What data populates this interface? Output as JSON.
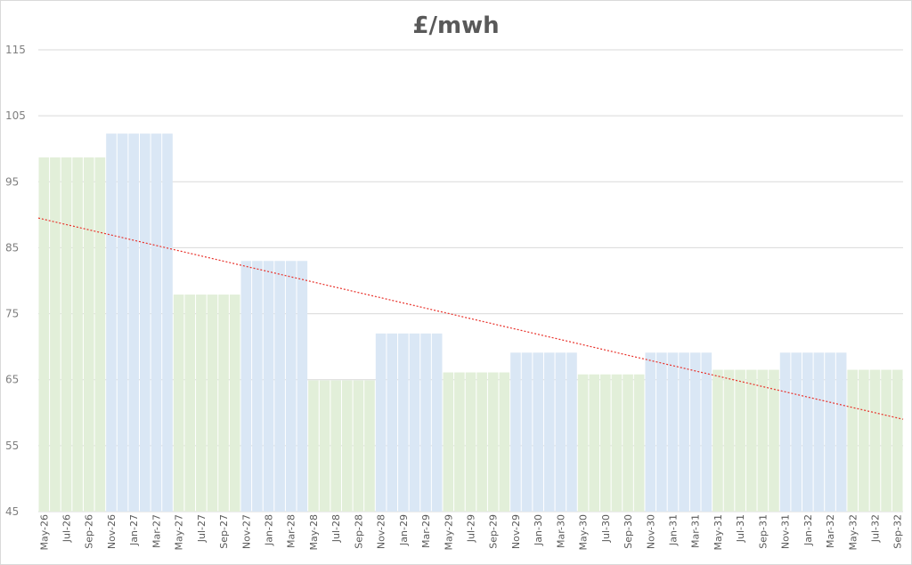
{
  "chart_data": {
    "type": "bar",
    "title": "£/mwh",
    "xlabel": "",
    "ylabel": "",
    "ylim": [
      45,
      115
    ],
    "yticks": [
      45,
      55,
      65,
      75,
      85,
      95,
      105,
      115
    ],
    "grid": "horizontal",
    "legend": "none",
    "categories": [
      "May-26",
      "Jun-26",
      "Jul-26",
      "Aug-26",
      "Sep-26",
      "Oct-26",
      "Nov-26",
      "Dec-26",
      "Jan-27",
      "Feb-27",
      "Mar-27",
      "Apr-27",
      "May-27",
      "Jun-27",
      "Jul-27",
      "Aug-27",
      "Sep-27",
      "Oct-27",
      "Nov-27",
      "Dec-27",
      "Jan-28",
      "Feb-28",
      "Mar-28",
      "Apr-28",
      "May-28",
      "Jun-28",
      "Jul-28",
      "Aug-28",
      "Sep-28",
      "Oct-28",
      "Nov-28",
      "Dec-28",
      "Jan-29",
      "Feb-29",
      "Mar-29",
      "Apr-29",
      "May-29",
      "Jun-29",
      "Jul-29",
      "Aug-29",
      "Sep-29",
      "Oct-29",
      "Nov-29",
      "Dec-29",
      "Jan-30",
      "Feb-30",
      "Mar-30",
      "Apr-30",
      "May-30",
      "Jun-30",
      "Jul-30",
      "Aug-30",
      "Sep-30",
      "Oct-30",
      "Nov-30",
      "Dec-30",
      "Jan-31",
      "Feb-31",
      "Mar-31",
      "Apr-31",
      "May-31",
      "Jun-31",
      "Jul-31",
      "Aug-31",
      "Sep-31",
      "Oct-31",
      "Nov-31",
      "Dec-31",
      "Jan-32",
      "Feb-32",
      "Mar-32",
      "Apr-32",
      "May-32",
      "Jun-32",
      "Jul-32",
      "Aug-32",
      "Sep-32"
    ],
    "tick_labels": [
      "May-26",
      "Jul-26",
      "Sep-26",
      "Nov-26",
      "Jan-27",
      "Mar-27",
      "May-27",
      "Jul-27",
      "Sep-27",
      "Nov-27",
      "Jan-28",
      "Mar-28",
      "May-28",
      "Jul-28",
      "Sep-28",
      "Nov-28",
      "Jan-29",
      "Mar-29",
      "May-29",
      "Jul-29",
      "Sep-29",
      "Nov-29",
      "Jan-30",
      "Mar-30",
      "May-30",
      "Jul-30",
      "Sep-30",
      "Nov-30",
      "Jan-31",
      "Mar-31",
      "May-31",
      "Jul-31",
      "Sep-31",
      "Nov-31",
      "Jan-32",
      "Mar-32",
      "May-32",
      "Jul-32",
      "Sep-32"
    ],
    "values": [
      98.7,
      98.7,
      98.7,
      98.7,
      98.7,
      98.7,
      102.3,
      102.3,
      102.3,
      102.3,
      102.3,
      102.3,
      77.9,
      77.9,
      77.9,
      77.9,
      77.9,
      77.9,
      83.0,
      83.0,
      83.0,
      83.0,
      83.0,
      83.0,
      64.9,
      64.9,
      64.9,
      64.9,
      64.9,
      64.9,
      72.0,
      72.0,
      72.0,
      72.0,
      72.0,
      72.0,
      66.1,
      66.1,
      66.1,
      66.1,
      66.1,
      66.1,
      69.1,
      69.1,
      69.1,
      69.1,
      69.1,
      69.1,
      65.8,
      65.8,
      65.8,
      65.8,
      65.8,
      65.8,
      69.1,
      69.1,
      69.1,
      69.1,
      69.1,
      69.1,
      66.5,
      66.5,
      66.5,
      66.5,
      66.5,
      66.5,
      69.1,
      69.1,
      69.1,
      69.1,
      69.1,
      69.1,
      66.5,
      66.5,
      66.5,
      66.5,
      66.5
    ],
    "bar_colors": {
      "summer": "#e2efd9",
      "winter": "#dae7f5"
    },
    "season_pattern": "6 months summer (Apr–Sep, green) alternating with 6 months winter (Oct–Mar, blue)",
    "trendline": {
      "type": "linear",
      "start_value": 89.5,
      "end_value": 59.0,
      "color": "#e8312a",
      "style": "dotted"
    },
    "colors": {
      "gridline": "#d9d9d9",
      "axis_text": "#7f7f7f",
      "title": "#595959"
    }
  }
}
